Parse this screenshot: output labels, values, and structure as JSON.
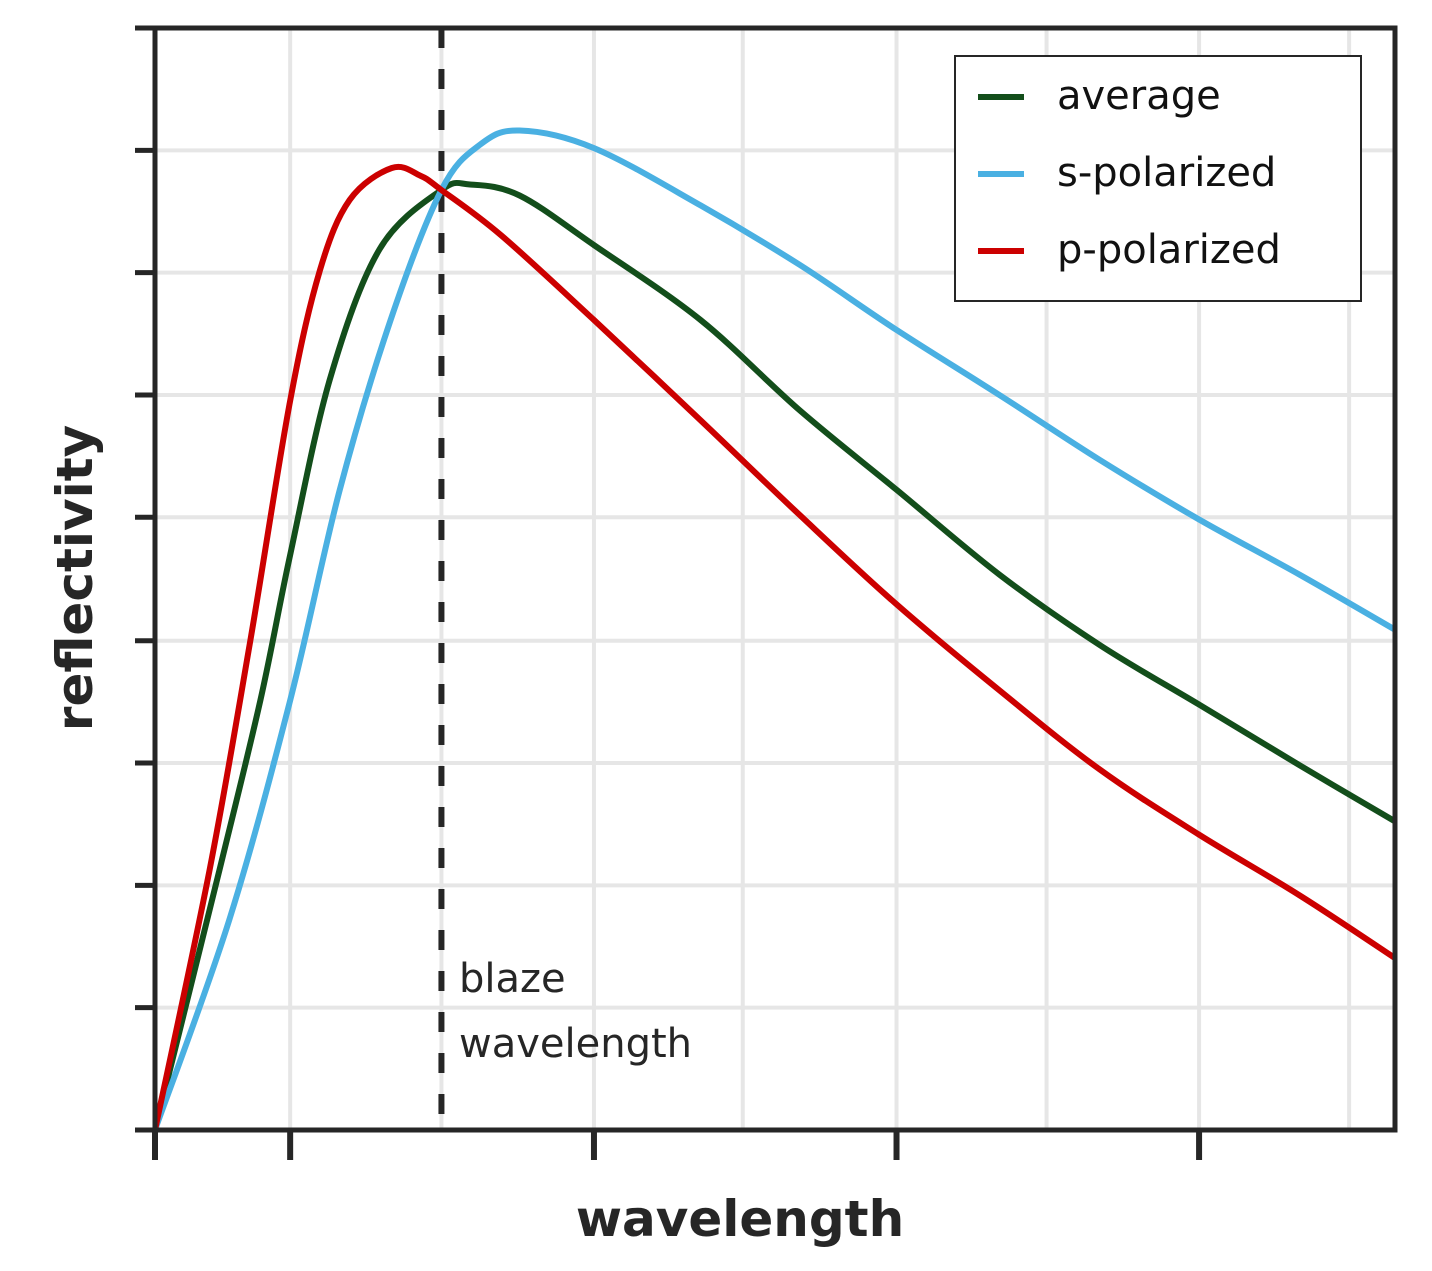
{
  "chart_data": {
    "type": "line",
    "title": "",
    "xlabel": "wavelength",
    "ylabel": "reflectivity",
    "xlim": [
      0,
      1
    ],
    "ylim": [
      0,
      1
    ],
    "x_units": "fraction of axis range (axis has no numeric labels)",
    "y_units": "fraction of axis range (axis has no numeric labels)",
    "grid": true,
    "x_major_ticks": [
      0,
      0.109,
      0.354,
      0.598,
      0.842
    ],
    "x_gridlines": [
      0.109,
      0.231,
      0.354,
      0.474,
      0.598,
      0.719,
      0.842,
      0.963
    ],
    "y_ticks": [
      0,
      0.111,
      0.222,
      0.333,
      0.444,
      0.556,
      0.667,
      0.778,
      0.889,
      1.0
    ],
    "x_tick_labels": [],
    "y_tick_labels": [],
    "legend_position": "top-right",
    "series": [
      {
        "name": "average",
        "color": "#134e1b",
        "x": [
          0,
          0.052,
          0.085,
          0.109,
          0.141,
          0.181,
          0.231,
          0.254,
          0.294,
          0.354,
          0.44,
          0.52,
          0.598,
          0.681,
          0.762,
          0.842,
          0.923,
          1.0
        ],
        "y": [
          0,
          0.236,
          0.39,
          0.522,
          0.681,
          0.799,
          0.853,
          0.858,
          0.848,
          0.803,
          0.735,
          0.653,
          0.581,
          0.504,
          0.44,
          0.386,
          0.331,
          0.28
        ]
      },
      {
        "name": "s-polarized",
        "color": "#4ab0e2",
        "x": [
          0,
          0.06,
          0.109,
          0.149,
          0.19,
          0.231,
          0.262,
          0.294,
          0.354,
          0.44,
          0.52,
          0.598,
          0.681,
          0.762,
          0.842,
          0.923,
          1.0
        ],
        "y": [
          0,
          0.191,
          0.39,
          0.581,
          0.735,
          0.853,
          0.894,
          0.907,
          0.891,
          0.839,
          0.785,
          0.726,
          0.667,
          0.608,
          0.554,
          0.504,
          0.454
        ]
      },
      {
        "name": "p-polarized",
        "color": "#cc0000",
        "x": [
          0,
          0.044,
          0.077,
          0.109,
          0.133,
          0.157,
          0.191,
          0.214,
          0.231,
          0.279,
          0.354,
          0.44,
          0.52,
          0.598,
          0.681,
          0.762,
          0.842,
          0.923,
          1.0
        ],
        "y": [
          0,
          0.236,
          0.445,
          0.662,
          0.78,
          0.844,
          0.873,
          0.866,
          0.853,
          0.812,
          0.735,
          0.644,
          0.558,
          0.477,
          0.399,
          0.327,
          0.268,
          0.213,
          0.156
        ]
      }
    ],
    "vlines": [
      {
        "x": 0.231,
        "style": "dashed",
        "color": "#262626",
        "label_lines": [
          "blaze",
          "wavelength"
        ]
      }
    ],
    "legend": {
      "items": [
        {
          "label": "average",
          "color": "#134e1b"
        },
        {
          "label": "s-polarized",
          "color": "#4ab0e2"
        },
        {
          "label": "p-polarized",
          "color": "#cc0000"
        }
      ]
    },
    "colors": {
      "axis": "#262626",
      "grid": "#e6e6e6",
      "background": "#ffffff"
    }
  }
}
